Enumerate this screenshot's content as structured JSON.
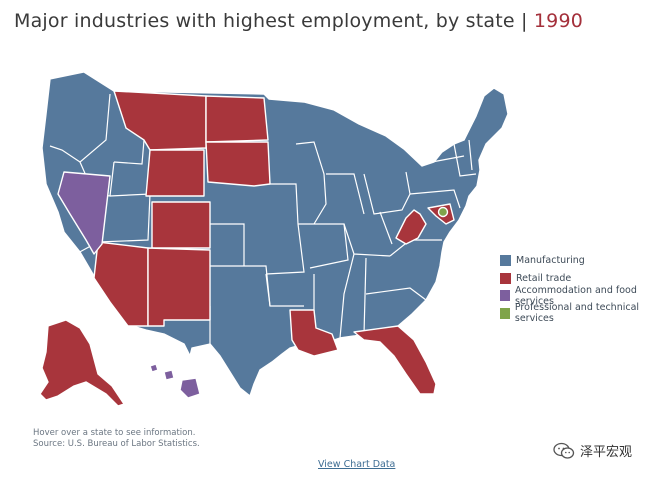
{
  "header": {
    "title_main": "Major industries with highest employment, by state",
    "separator": "|",
    "year": "1990"
  },
  "colors": {
    "manufacturing": "#56799c",
    "retail": "#a8353c",
    "accommodation": "#7d5f9e",
    "professional": "#7fa44a"
  },
  "legend": [
    {
      "label": "Manufacturing",
      "color": "#56799c"
    },
    {
      "label": "Retail trade",
      "color": "#a8353c"
    },
    {
      "label": "Accommodation and food services",
      "color": "#7d5f9e"
    },
    {
      "label": "Professional and technical services",
      "color": "#7fa44a"
    }
  ],
  "map": {
    "state_industry": {
      "retail": [
        "MT",
        "ND",
        "WY",
        "SD",
        "CO",
        "AZ",
        "NM",
        "LA",
        "FL",
        "WV",
        "MD",
        "AK"
      ],
      "accommodation": [
        "NV",
        "HI"
      ],
      "professional": [
        "DC"
      ],
      "manufacturing": [
        "all other states"
      ]
    }
  },
  "footer": {
    "hover_hint": "Hover over a state to see information.",
    "source": "Source: U.S. Bureau of Labor Statistics.",
    "view_data_link": "View Chart Data"
  },
  "watermark": {
    "text": "泽平宏观",
    "icon": "wechat-icon"
  }
}
